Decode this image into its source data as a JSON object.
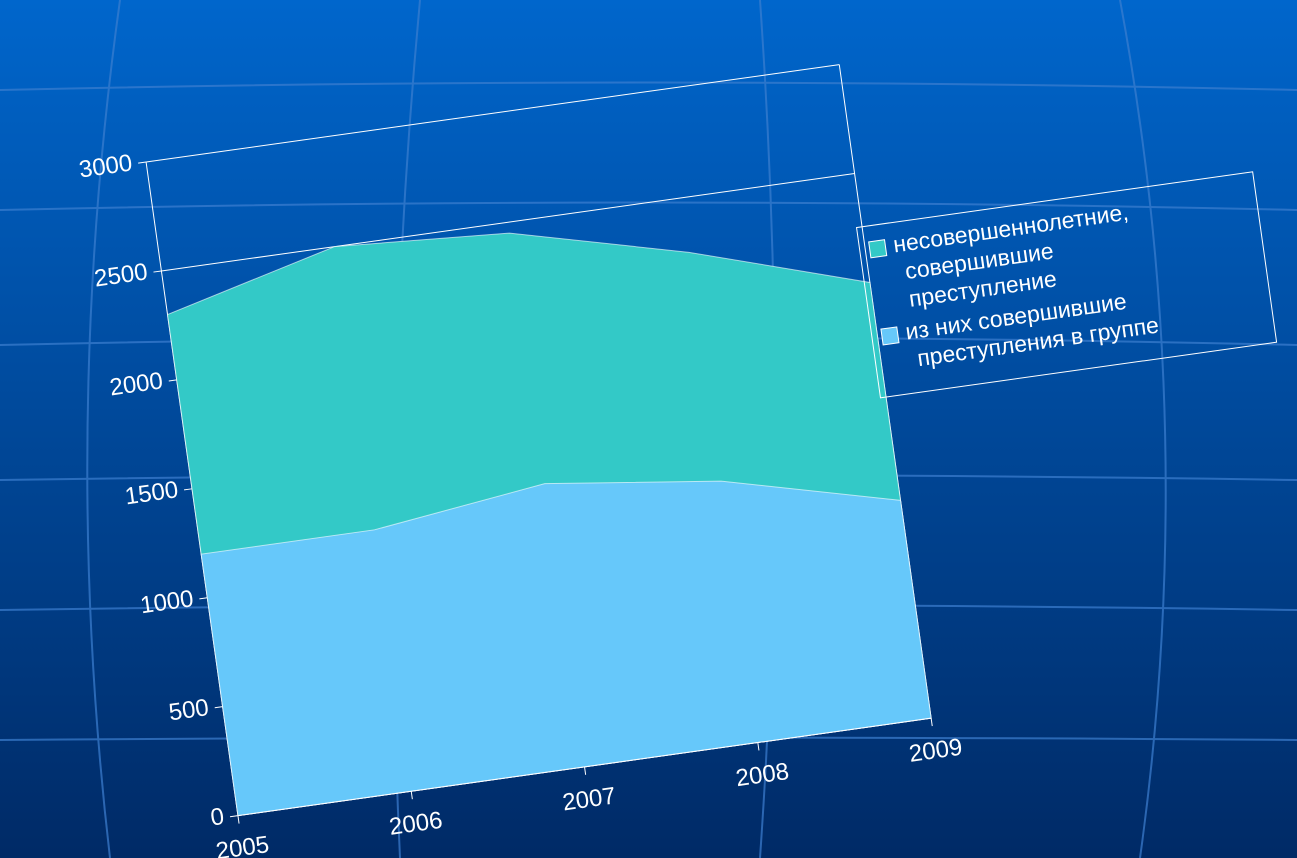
{
  "chart_data": {
    "type": "area",
    "categories": [
      "2005",
      "2006",
      "2007",
      "2008",
      "2009"
    ],
    "series": [
      {
        "name": "несовершеннолетние, совершившие преступление",
        "color": "#33c9c7",
        "values": [
          2300,
          2500,
          2450,
          2250,
          2000
        ]
      },
      {
        "name": "из них совершившие преступления в группе",
        "color": "#66c8fa",
        "values": [
          1200,
          1200,
          1300,
          1200,
          1000
        ]
      }
    ],
    "ylim": [
      0,
      3000
    ],
    "yticks": [
      0,
      500,
      1000,
      1500,
      2000,
      2500,
      3000
    ],
    "grid": true,
    "legend": "right"
  }
}
